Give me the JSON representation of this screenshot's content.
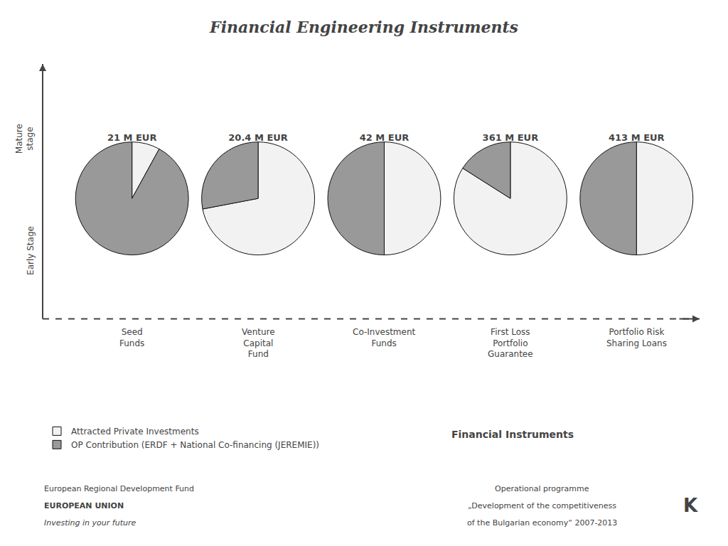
{
  "title": "Financial Engineering Instruments",
  "annotations": [
    "Mature\nstage",
    "Early Stage",
    "Financial Instruments",
    "European Regional Development Fund",
    "EUROPEAN UNION",
    "Investing in your future",
    "Operational programme",
    "„Development of the competitiveness",
    "of the Bulgarian economy“ 2007-2013",
    "K"
  ],
  "chart_data": [
    {
      "type": "pie",
      "title": "21 M EUR",
      "xlabel": "Seed\nFunds",
      "categories": [
        "Attracted Private Investments",
        "OP Contribution (ERDF + National Co-financing (JEREMIE))"
      ],
      "values": [
        8,
        92
      ],
      "colors": [
        "#f2f2f2",
        "#999999"
      ],
      "legend": "lower left"
    },
    {
      "type": "pie",
      "title": "20.4 M EUR",
      "xlabel": "Venture\nCapital\nFund",
      "categories": [
        "Attracted Private Investments",
        "OP Contribution (ERDF + National Co-financing (JEREMIE))"
      ],
      "values": [
        72,
        28
      ],
      "colors": [
        "#f2f2f2",
        "#999999"
      ],
      "legend": "lower left"
    },
    {
      "type": "pie",
      "title": "42 M EUR",
      "xlabel": "Co-Investment\nFunds",
      "categories": [
        "Attracted Private Investments",
        "OP Contribution (ERDF + National Co-financing (JEREMIE))"
      ],
      "values": [
        50,
        50
      ],
      "colors": [
        "#f2f2f2",
        "#999999"
      ],
      "legend": "lower left"
    },
    {
      "type": "pie",
      "title": "361 M EUR",
      "xlabel": "First Loss\nPortfolio\nGuarantee",
      "categories": [
        "Attracted Private Investments",
        "OP Contribution (ERDF + National Co-financing (JEREMIE))"
      ],
      "values": [
        84,
        16
      ],
      "colors": [
        "#f2f2f2",
        "#999999"
      ],
      "legend": "lower left"
    },
    {
      "type": "pie",
      "title": "413 M EUR",
      "xlabel": "Portfolio Risk\nSharing Loans",
      "categories": [
        "Attracted Private Investments",
        "OP Contribution (ERDF + National Co-financing (JEREMIE))"
      ],
      "values": [
        50,
        50
      ],
      "colors": [
        "#f2f2f2",
        "#999999"
      ],
      "legend": "lower left"
    }
  ]
}
